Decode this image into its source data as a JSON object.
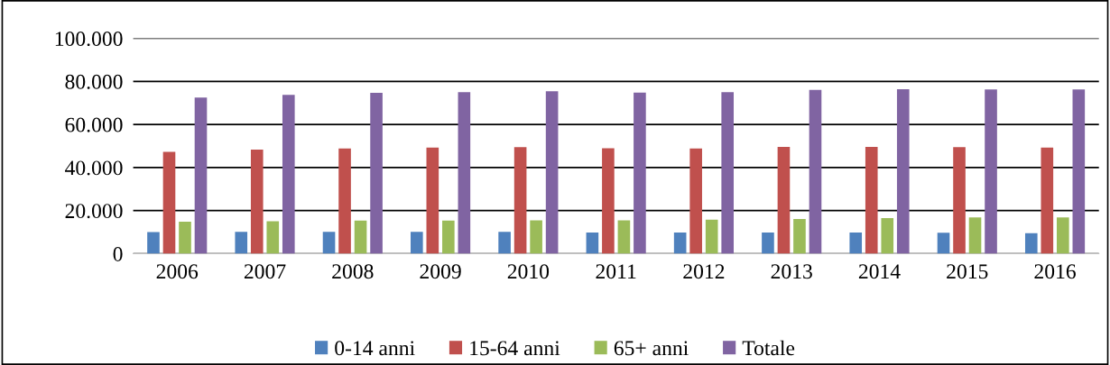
{
  "chart_data": {
    "type": "bar",
    "categories": [
      "2006",
      "2007",
      "2008",
      "2009",
      "2010",
      "2011",
      "2012",
      "2013",
      "2014",
      "2015",
      "2016"
    ],
    "series": [
      {
        "name": "0-14 anni",
        "color": "#4f81bd",
        "values": [
          10000,
          10100,
          10100,
          10100,
          10100,
          9800,
          9800,
          9800,
          9800,
          9700,
          9500
        ]
      },
      {
        "name": "15-64 anni",
        "color": "#c0504d",
        "values": [
          47300,
          48300,
          48900,
          49300,
          49500,
          49000,
          48900,
          49600,
          49600,
          49500,
          49300
        ]
      },
      {
        "name": "65+ anni",
        "color": "#9bbb59",
        "values": [
          14800,
          15100,
          15400,
          15400,
          15500,
          15500,
          15800,
          16100,
          16500,
          16800,
          16800
        ]
      },
      {
        "name": "Totale",
        "color": "#8064a2",
        "values": [
          72500,
          73800,
          74700,
          75000,
          75400,
          74800,
          75000,
          76100,
          76400,
          76300,
          76300
        ]
      }
    ],
    "ylim": [
      0,
      100000
    ],
    "yticks": [
      {
        "value": 0,
        "label": "0"
      },
      {
        "value": 20000,
        "label": "20.000"
      },
      {
        "value": 40000,
        "label": "40.000"
      },
      {
        "value": 60000,
        "label": "60.000"
      },
      {
        "value": 80000,
        "label": "80.000"
      },
      {
        "value": 100000,
        "label": "100.000"
      }
    ],
    "grid": "y",
    "legend": "bottom"
  }
}
